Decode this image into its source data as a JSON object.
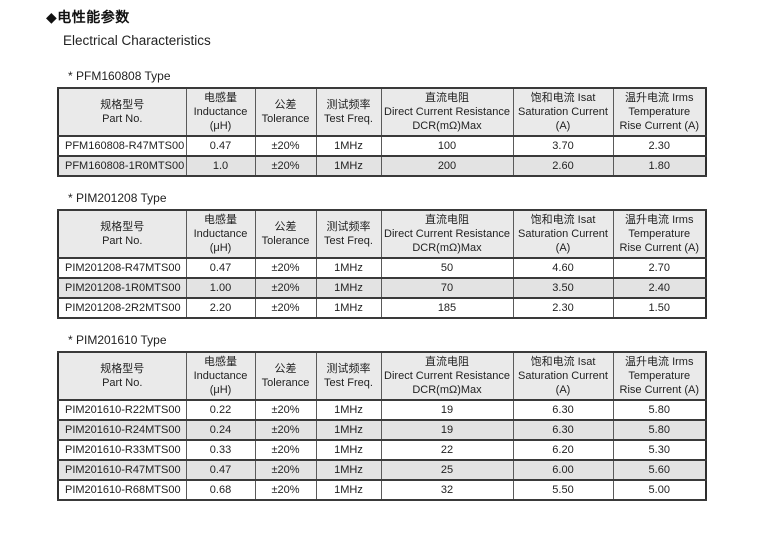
{
  "page": {
    "title_cn": "◆电性能参数",
    "title_en": "Electrical Characteristics"
  },
  "table_headers": {
    "part_cn": "规格型号",
    "part_en": "Part No.",
    "inductance_cn": "电感量",
    "inductance_en": "Inductance",
    "inductance_unit": "(μH)",
    "tolerance_cn": "公差",
    "tolerance_en": "Tolerance",
    "freq_cn": "测试频率",
    "freq_en": "Test Freq.",
    "dcr_cn": "直流电阻",
    "dcr_en": "Direct Current Resistance",
    "dcr_unit": "DCR(mΩ)Max",
    "isat_cn": "饱和电流  Isat",
    "isat_en": "Saturation Current",
    "isat_unit": "(A)",
    "irms_cn": "温升电流  Irms",
    "irms_en": "Temperature",
    "irms_unit": "Rise Current (A)"
  },
  "sections": [
    {
      "caption": "*  PFM160808 Type",
      "rows": [
        [
          "PFM160808-R47MTS00",
          "0.47",
          "±20%",
          "1MHz",
          "100",
          "3.70",
          "2.30"
        ],
        [
          "PFM160808-1R0MTS00",
          "1.0",
          "±20%",
          "1MHz",
          "200",
          "2.60",
          "1.80"
        ]
      ]
    },
    {
      "caption": "*  PIM201208 Type",
      "rows": [
        [
          "PIM201208-R47MTS00",
          "0.47",
          "±20%",
          "1MHz",
          "50",
          "4.60",
          "2.70"
        ],
        [
          "PIM201208-1R0MTS00",
          "1.00",
          "±20%",
          "1MHz",
          "70",
          "3.50",
          "2.40"
        ],
        [
          "PIM201208-2R2MTS00",
          "2.20",
          "±20%",
          "1MHz",
          "185",
          "2.30",
          "1.50"
        ]
      ]
    },
    {
      "caption": "*  PIM201610 Type",
      "rows": [
        [
          "PIM201610-R22MTS00",
          "0.22",
          "±20%",
          "1MHz",
          "19",
          "6.30",
          "5.80"
        ],
        [
          "PIM201610-R24MTS00",
          "0.24",
          "±20%",
          "1MHz",
          "19",
          "6.30",
          "5.80"
        ],
        [
          "PIM201610-R33MTS00",
          "0.33",
          "±20%",
          "1MHz",
          "22",
          "6.20",
          "5.30"
        ],
        [
          "PIM201610-R47MTS00",
          "0.47",
          "±20%",
          "1MHz",
          "25",
          "6.00",
          "5.60"
        ],
        [
          "PIM201610-R68MTS00",
          "0.68",
          "±20%",
          "1MHz",
          "32",
          "5.50",
          "5.00"
        ]
      ]
    }
  ],
  "colors": {
    "header_bg": "#eaeaea",
    "alt_row_bg": "#e3e3e3",
    "border": "#3a3a3a",
    "text": "#1f1f1f"
  }
}
